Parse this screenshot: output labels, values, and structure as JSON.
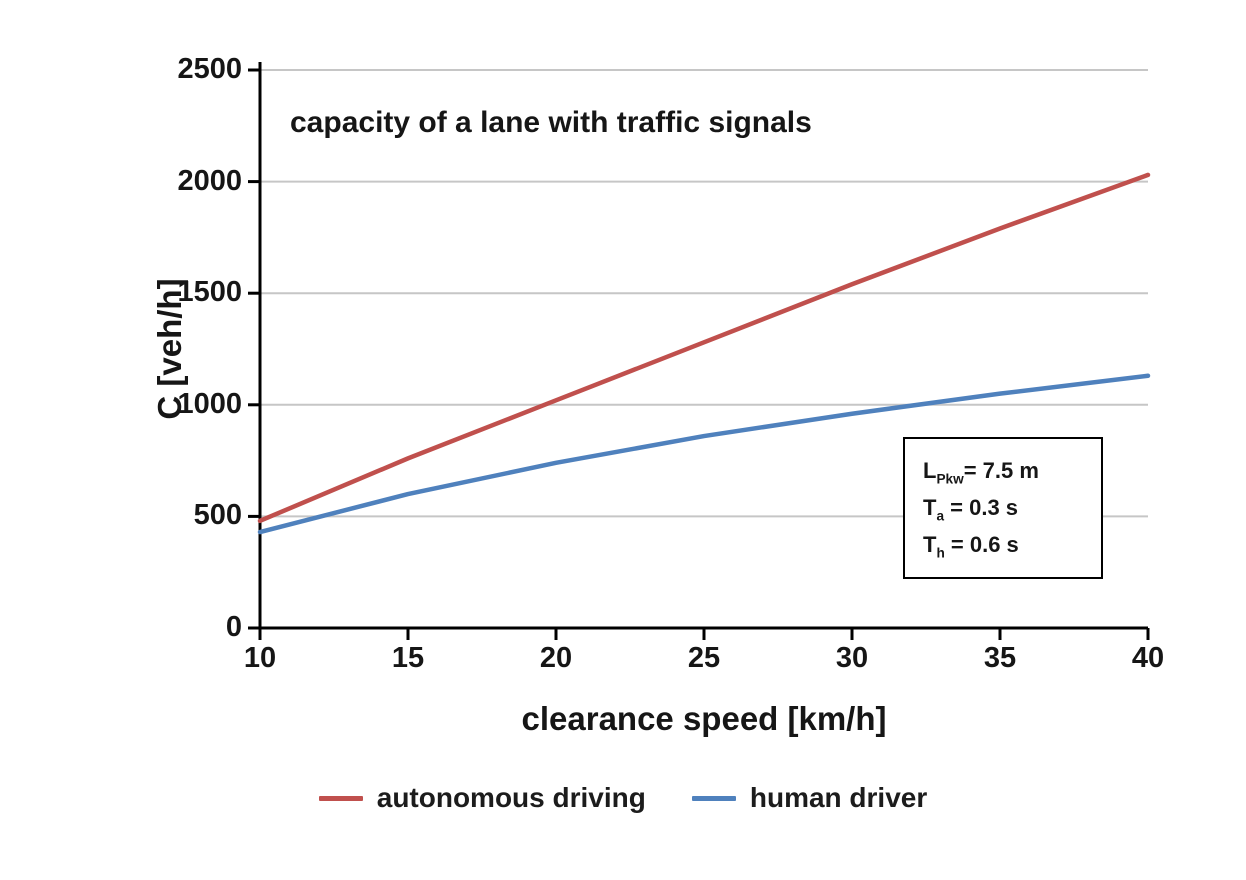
{
  "chart_data": {
    "type": "line",
    "title": "capacity of a lane with traffic signals",
    "xlabel": "clearance speed [km/h]",
    "ylabel": "C [veh/h]",
    "x": [
      10,
      15,
      20,
      25,
      30,
      35,
      40
    ],
    "series": [
      {
        "name": "autonomous driving",
        "color": "#C0504D",
        "values": [
          480,
          760,
          1020,
          1280,
          1540,
          1790,
          2030
        ]
      },
      {
        "name": "human driver",
        "color": "#4F81BD",
        "values": [
          430,
          600,
          740,
          860,
          960,
          1050,
          1130
        ]
      }
    ],
    "xlim": [
      10,
      40
    ],
    "ylim": [
      0,
      2500
    ],
    "xticks": [
      10,
      15,
      20,
      25,
      30,
      35,
      40
    ],
    "yticks": [
      0,
      500,
      1000,
      1500,
      2000,
      2500
    ],
    "grid": "horizontal",
    "gridline_color": "#c6c6c6",
    "axis_color": "#000000",
    "legend_position": "bottom",
    "annotation": {
      "lines": [
        {
          "base": "L",
          "sub": "Pkw",
          "rest": "= 7.5 m"
        },
        {
          "base": "T",
          "sub": "a",
          "rest": " = 0.3 s"
        },
        {
          "base": "T",
          "sub": "h",
          "rest": " = 0.6 s"
        }
      ]
    }
  }
}
